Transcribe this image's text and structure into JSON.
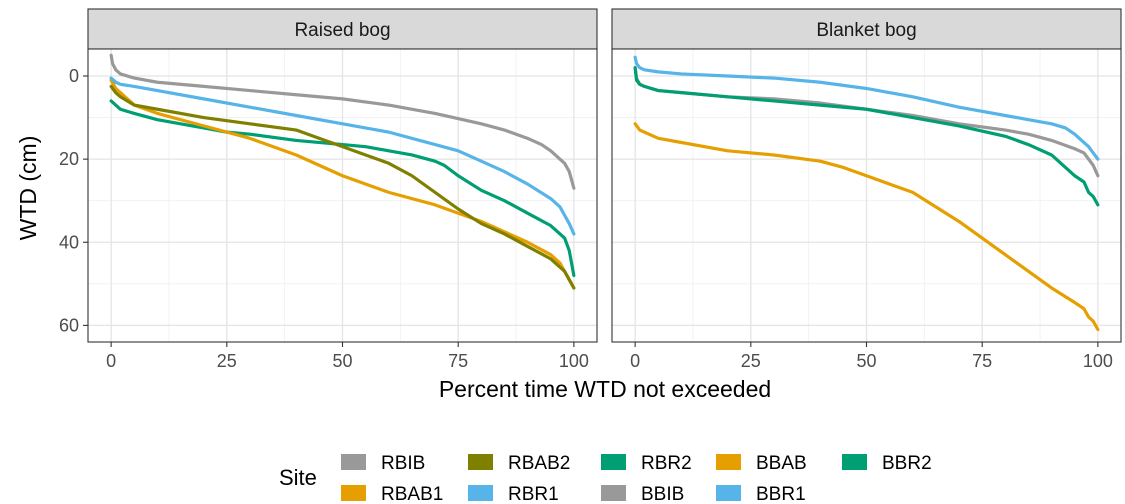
{
  "chart_data": {
    "type": "line",
    "xlabel": "Percent time WTD not exceeded",
    "ylabel": "WTD (cm)",
    "xlim": [
      -5,
      105
    ],
    "ylim": [
      -6.5,
      64
    ],
    "y_reversed": true,
    "x_ticks": [
      0,
      25,
      50,
      75,
      100
    ],
    "y_ticks": [
      0,
      20,
      40,
      60
    ],
    "grid": true,
    "legend_position": "bottom",
    "legend_title": "Site",
    "legend_items": [
      {
        "label": "RBIB",
        "color": "#999999"
      },
      {
        "label": "RBAB1",
        "color": "#E69F00"
      },
      {
        "label": "RBAB2",
        "color": "#808000"
      },
      {
        "label": "RBR1",
        "color": "#56B4E9"
      },
      {
        "label": "RBR2",
        "color": "#009E73"
      },
      {
        "label": "BBIB",
        "color": "#999999"
      },
      {
        "label": "BBAB",
        "color": "#E69F00"
      },
      {
        "label": "BBR1",
        "color": "#56B4E9"
      },
      {
        "label": "BBR2",
        "color": "#009E73"
      }
    ],
    "panels": [
      {
        "title": "Raised bog",
        "series": [
          {
            "name": "RBR2",
            "color": "#009E73",
            "x": [
              0,
              2,
              5,
              10,
              15,
              20,
              25,
              30,
              40,
              50,
              55,
              60,
              65,
              70,
              72,
              75,
              80,
              85,
              90,
              95,
              98,
              99,
              100
            ],
            "y": [
              6,
              8,
              9,
              10.5,
              11.5,
              12.5,
              13.5,
              14,
              15.5,
              16.5,
              17,
              18,
              19,
              20.5,
              21.5,
              24,
              27.5,
              30,
              33,
              36,
              39,
              42,
              48
            ]
          },
          {
            "name": "RBAB1",
            "color": "#E69F00",
            "x": [
              0,
              1,
              3,
              5,
              10,
              20,
              30,
              40,
              50,
              60,
              70,
              80,
              90,
              95,
              97,
              98,
              99,
              100
            ],
            "y": [
              1,
              3,
              5,
              7,
              9,
              12,
              15,
              19,
              24,
              28,
              31,
              35,
              40,
              43,
              45,
              47,
              49,
              51
            ]
          },
          {
            "name": "RBAB2",
            "color": "#808000",
            "x": [
              0,
              1,
              2,
              5,
              10,
              20,
              30,
              40,
              45,
              50,
              55,
              60,
              65,
              70,
              75,
              80,
              85,
              90,
              95,
              98,
              99,
              100
            ],
            "y": [
              2.5,
              4,
              5,
              7,
              8,
              10,
              11.5,
              13,
              15,
              17,
              19,
              21,
              24,
              28,
              32,
              35.5,
              38,
              41,
              44,
              47,
              49,
              51
            ]
          },
          {
            "name": "RBR1",
            "color": "#56B4E9",
            "x": [
              0,
              1,
              2,
              5,
              10,
              20,
              30,
              40,
              50,
              60,
              70,
              75,
              80,
              85,
              90,
              95,
              97,
              98,
              99,
              100
            ],
            "y": [
              0.5,
              1.5,
              2,
              2.5,
              3.5,
              5.5,
              7.5,
              9.5,
              11.5,
              13.5,
              16.5,
              18,
              20.5,
              23,
              26,
              29.5,
              31.5,
              33.5,
              35.5,
              38
            ]
          },
          {
            "name": "RBIB",
            "color": "#999999",
            "x": [
              0,
              0.3,
              1,
              2,
              5,
              10,
              20,
              30,
              40,
              50,
              60,
              70,
              80,
              85,
              90,
              93,
              95,
              97,
              98,
              99,
              100
            ],
            "y": [
              -5,
              -3,
              -1.5,
              -0.5,
              0.5,
              1.5,
              2.5,
              3.5,
              4.5,
              5.5,
              7,
              9,
              11.5,
              13,
              15,
              16.5,
              18,
              20,
              21,
              23,
              27
            ]
          }
        ]
      },
      {
        "title": "Blanket bog",
        "series": [
          {
            "name": "BBIB",
            "color": "#999999",
            "x": [
              0,
              0.3,
              1,
              2,
              5,
              10,
              20,
              30,
              40,
              50,
              60,
              70,
              80,
              85,
              90,
              95,
              97,
              98,
              99,
              100
            ],
            "y": [
              -2,
              0.5,
              2,
              2.5,
              3.5,
              4,
              5,
              5.5,
              6.5,
              8,
              9.5,
              11.5,
              13,
              14,
              15.5,
              17.5,
              18.5,
              20,
              21.5,
              24
            ]
          },
          {
            "name": "BBR2",
            "color": "#009E73",
            "x": [
              0,
              0.3,
              1,
              2,
              5,
              10,
              20,
              30,
              40,
              50,
              60,
              70,
              80,
              85,
              90,
              93,
              95,
              97,
              98,
              99,
              100
            ],
            "y": [
              -2,
              1,
              2,
              2.5,
              3.5,
              4,
              5,
              6,
              7,
              8,
              10,
              12,
              14.5,
              16.5,
              19,
              22,
              24,
              25.5,
              28,
              29,
              31
            ]
          },
          {
            "name": "BBR1",
            "color": "#56B4E9",
            "x": [
              0,
              0.3,
              1,
              2,
              5,
              10,
              20,
              30,
              40,
              50,
              60,
              70,
              80,
              85,
              90,
              93,
              95,
              97,
              98,
              99,
              100
            ],
            "y": [
              -4.5,
              -3,
              -2,
              -1.5,
              -1,
              -0.5,
              0,
              0.5,
              1.5,
              3,
              5,
              7.5,
              9.5,
              10.5,
              11.5,
              12.5,
              14,
              16,
              17,
              18.5,
              20
            ]
          },
          {
            "name": "BBAB",
            "color": "#E69F00",
            "x": [
              0,
              1,
              3,
              5,
              10,
              20,
              30,
              40,
              45,
              50,
              55,
              60,
              70,
              80,
              85,
              90,
              95,
              97,
              98,
              99,
              100
            ],
            "y": [
              11.5,
              13,
              14,
              15,
              16,
              18,
              19,
              20.5,
              22,
              24,
              26,
              28,
              35,
              43,
              47,
              51,
              54.5,
              56,
              58,
              59,
              61
            ]
          }
        ]
      }
    ]
  }
}
